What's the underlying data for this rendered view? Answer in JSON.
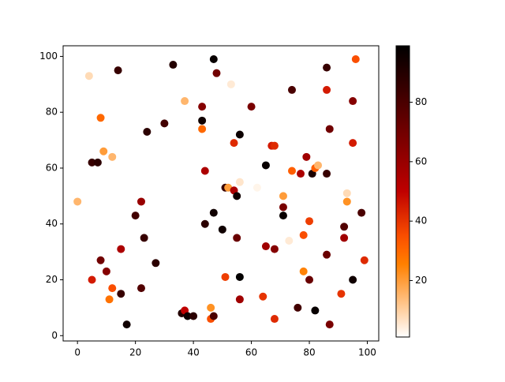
{
  "chart_data": {
    "type": "scatter",
    "x": [
      0,
      4,
      5,
      7,
      5,
      8,
      9,
      8,
      10,
      12,
      12,
      11,
      14,
      15,
      15,
      17,
      20,
      22,
      22,
      23,
      24,
      27,
      28,
      30,
      33,
      37,
      36,
      37,
      38,
      40,
      43,
      43,
      43,
      44,
      44,
      46,
      46,
      47,
      47,
      47,
      48,
      50,
      51,
      51,
      52,
      53,
      54,
      54,
      55,
      55,
      56,
      56,
      56,
      56,
      60,
      62,
      64,
      65,
      65,
      67,
      68,
      68,
      68,
      71,
      71,
      71,
      73,
      74,
      74,
      76,
      77,
      78,
      78,
      79,
      80,
      80,
      81,
      82,
      82,
      83,
      86,
      86,
      86,
      86,
      87,
      87,
      91,
      92,
      92,
      93,
      93,
      95,
      95,
      95,
      96,
      98,
      99
    ],
    "values": [
      48,
      93,
      62,
      62,
      20,
      78,
      66,
      27,
      23,
      64,
      17,
      13,
      95,
      31,
      15,
      4,
      43,
      48,
      17,
      35,
      73,
      26,
      80,
      76,
      97,
      84,
      8,
      9,
      7,
      7,
      82,
      77,
      74,
      59,
      40,
      10,
      6,
      7,
      99,
      44,
      94,
      38,
      53,
      21,
      53,
      90,
      69,
      52,
      50,
      35,
      72,
      55,
      21,
      13,
      82,
      53,
      14,
      61,
      32,
      68,
      68,
      31,
      6,
      50,
      46,
      43,
      34,
      88,
      59,
      10,
      58,
      36,
      23,
      64,
      41,
      20,
      58,
      9,
      60,
      61,
      96,
      88,
      58,
      29,
      74,
      4,
      15,
      39,
      35,
      51,
      48,
      84,
      69,
      20,
      99,
      44,
      27
    ],
    "color_values": [
      15,
      8,
      85,
      88,
      45,
      30,
      20,
      70,
      65,
      15,
      35,
      28,
      85,
      55,
      85,
      95,
      82,
      60,
      78,
      85,
      88,
      88,
      1,
      82,
      90,
      15,
      90,
      50,
      96,
      88,
      65,
      95,
      30,
      55,
      88,
      22,
      35,
      80,
      97,
      95,
      70,
      95,
      85,
      38,
      20,
      5,
      42,
      55,
      95,
      72,
      96,
      6,
      98,
      58,
      68,
      3,
      40,
      97,
      58,
      45,
      42,
      65,
      42,
      20,
      68,
      97,
      5,
      80,
      32,
      82,
      55,
      35,
      25,
      58,
      38,
      72,
      92,
      97,
      32,
      15,
      85,
      45,
      85,
      72,
      70,
      68,
      40,
      78,
      58,
      8,
      22,
      65,
      45,
      95,
      35,
      80,
      42
    ],
    "colormap": "gist_heat_r",
    "clim": [
      1,
      99
    ],
    "cticks": [
      20,
      40,
      60,
      80
    ],
    "xlim": [
      -4.95,
      103.95
    ],
    "ylim": [
      -1.9,
      103.8
    ],
    "xticks": [
      0,
      20,
      40,
      60,
      80,
      100
    ],
    "yticks": [
      0,
      20,
      40,
      60,
      80,
      100
    ]
  }
}
